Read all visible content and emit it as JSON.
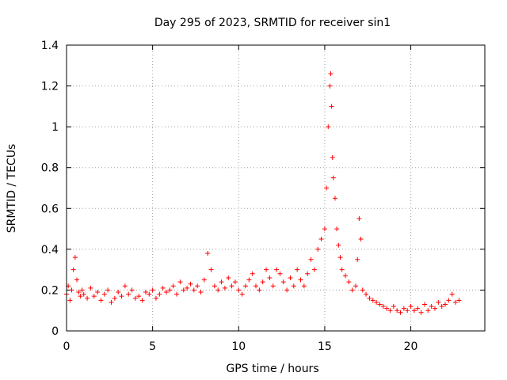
{
  "chart_data": {
    "type": "scatter",
    "title": "Day 295 of 2023, SRMTID for receiver sin1",
    "xlabel": "GPS time / hours",
    "ylabel": "SRMTID / TECUs",
    "xlim": [
      0,
      24.3
    ],
    "ylim": [
      0,
      1.4
    ],
    "x_ticks": [
      0,
      5,
      10,
      15,
      20
    ],
    "x_tick_labels": [
      "0",
      "5",
      "10",
      "15",
      "20"
    ],
    "y_ticks": [
      0,
      0.2,
      0.4,
      0.6,
      0.8,
      1,
      1.2,
      1.4
    ],
    "y_tick_labels": [
      "0",
      "0.2",
      "0.4",
      "0.6",
      "0.8",
      "1",
      "1.2",
      "1.4"
    ],
    "grid": true,
    "marker": "+",
    "color": "#ff0000",
    "series": [
      {
        "name": "sin1",
        "x": [
          0.0,
          0.1,
          0.2,
          0.3,
          0.4,
          0.5,
          0.6,
          0.7,
          0.8,
          0.9,
          1.0,
          1.2,
          1.4,
          1.6,
          1.8,
          2.0,
          2.2,
          2.4,
          2.6,
          2.8,
          3.0,
          3.2,
          3.4,
          3.6,
          3.8,
          4.0,
          4.2,
          4.4,
          4.6,
          4.8,
          5.0,
          5.2,
          5.4,
          5.6,
          5.8,
          6.0,
          6.2,
          6.4,
          6.6,
          6.8,
          7.0,
          7.2,
          7.4,
          7.6,
          7.8,
          8.0,
          8.2,
          8.4,
          8.6,
          8.8,
          9.0,
          9.2,
          9.4,
          9.6,
          9.8,
          10.0,
          10.2,
          10.4,
          10.6,
          10.8,
          11.0,
          11.2,
          11.4,
          11.6,
          11.8,
          12.0,
          12.2,
          12.4,
          12.6,
          12.8,
          13.0,
          13.2,
          13.4,
          13.6,
          13.8,
          14.0,
          14.2,
          14.4,
          14.6,
          14.8,
          15.0,
          15.1,
          15.2,
          15.3,
          15.35,
          15.4,
          15.45,
          15.5,
          15.6,
          15.7,
          15.8,
          15.9,
          16.0,
          16.2,
          16.4,
          16.6,
          16.8,
          16.9,
          17.0,
          17.1,
          17.2,
          17.4,
          17.6,
          17.8,
          18.0,
          18.2,
          18.4,
          18.6,
          18.8,
          19.0,
          19.2,
          19.4,
          19.6,
          19.8,
          20.0,
          20.2,
          20.4,
          20.6,
          20.8,
          21.0,
          21.2,
          21.4,
          21.6,
          21.8,
          22.0,
          22.2,
          22.4,
          22.6,
          22.8
        ],
        "y": [
          0.18,
          0.22,
          0.15,
          0.2,
          0.3,
          0.36,
          0.25,
          0.19,
          0.17,
          0.2,
          0.18,
          0.16,
          0.21,
          0.17,
          0.19,
          0.15,
          0.18,
          0.2,
          0.14,
          0.16,
          0.19,
          0.17,
          0.22,
          0.18,
          0.2,
          0.16,
          0.17,
          0.15,
          0.19,
          0.18,
          0.2,
          0.16,
          0.18,
          0.21,
          0.19,
          0.2,
          0.22,
          0.18,
          0.24,
          0.2,
          0.21,
          0.23,
          0.2,
          0.22,
          0.19,
          0.25,
          0.38,
          0.3,
          0.22,
          0.2,
          0.24,
          0.21,
          0.26,
          0.22,
          0.24,
          0.2,
          0.18,
          0.22,
          0.25,
          0.28,
          0.22,
          0.2,
          0.24,
          0.3,
          0.26,
          0.22,
          0.3,
          0.28,
          0.24,
          0.2,
          0.26,
          0.22,
          0.3,
          0.25,
          0.22,
          0.28,
          0.35,
          0.3,
          0.4,
          0.45,
          0.5,
          0.7,
          1.0,
          1.2,
          1.26,
          1.1,
          0.85,
          0.75,
          0.65,
          0.5,
          0.42,
          0.36,
          0.3,
          0.27,
          0.24,
          0.2,
          0.22,
          0.35,
          0.55,
          0.45,
          0.2,
          0.18,
          0.16,
          0.15,
          0.14,
          0.13,
          0.12,
          0.11,
          0.1,
          0.12,
          0.1,
          0.09,
          0.11,
          0.1,
          0.12,
          0.1,
          0.11,
          0.09,
          0.13,
          0.1,
          0.12,
          0.11,
          0.14,
          0.12,
          0.13,
          0.15,
          0.18,
          0.14,
          0.15
        ]
      }
    ]
  }
}
